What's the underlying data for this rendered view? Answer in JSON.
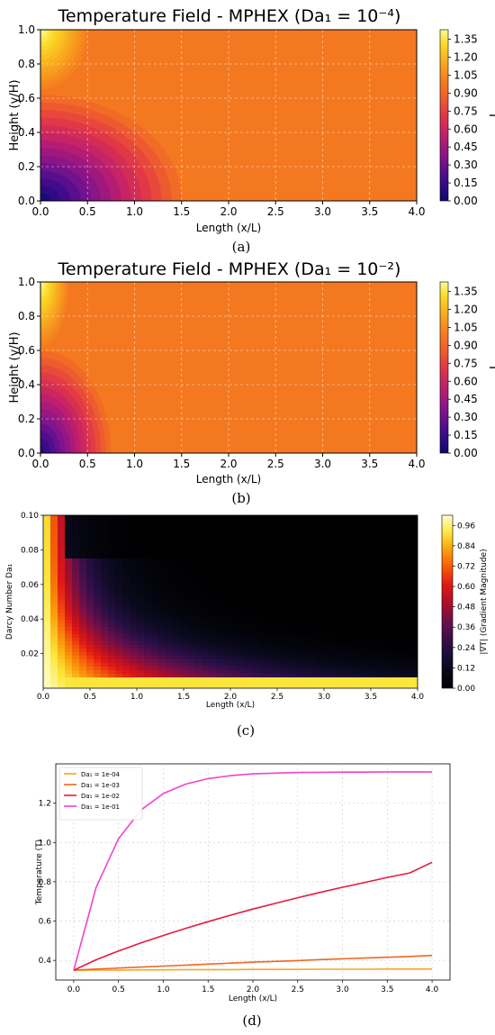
{
  "chart_data": [
    {
      "type": "heatmap",
      "panel_label": "(a)",
      "title": "Temperature Field - MPHEX (Da₁ = 10⁻⁴)",
      "xlabel": "Length (x/L)",
      "ylabel": "Height (y/H)",
      "colorbar_label": "T",
      "xlim": [
        0.0,
        4.0
      ],
      "ylim": [
        0.0,
        1.0
      ],
      "xticks": [
        "0.0",
        "0.5",
        "1.0",
        "1.5",
        "2.0",
        "2.5",
        "3.0",
        "3.5",
        "4.0"
      ],
      "yticks": [
        "0.0",
        "0.2",
        "0.4",
        "0.6",
        "0.8",
        "1.0"
      ],
      "colorbar_ticks": [
        "0.00",
        "0.15",
        "0.30",
        "0.45",
        "0.60",
        "0.75",
        "0.90",
        "1.05",
        "1.20",
        "1.35"
      ],
      "colorbar_range": [
        0.0,
        1.43
      ],
      "colormap": "plasma-like (navy-purple-red-orange-yellow)",
      "background_value": 0.98,
      "cold_zone": {
        "x_extent": 1.5,
        "y_top": 0.62,
        "min_value": 0.05
      },
      "hot_zone": {
        "x_extent": 0.5,
        "y_bottom": 0.65,
        "max_value": 1.42
      },
      "grid": true
    },
    {
      "type": "heatmap",
      "panel_label": "(b)",
      "title": "Temperature Field - MPHEX (Da₁ = 10⁻²)",
      "xlabel": "Length (x/L)",
      "ylabel": "Height (y/H)",
      "colorbar_label": "T",
      "xlim": [
        0.0,
        4.0
      ],
      "ylim": [
        0.0,
        1.0
      ],
      "xticks": [
        "0.0",
        "0.5",
        "1.0",
        "1.5",
        "2.0",
        "2.5",
        "3.0",
        "3.5",
        "4.0"
      ],
      "yticks": [
        "0.0",
        "0.2",
        "0.4",
        "0.6",
        "0.8",
        "1.0"
      ],
      "colorbar_ticks": [
        "0.00",
        "0.15",
        "0.30",
        "0.45",
        "0.60",
        "0.75",
        "0.90",
        "1.05",
        "1.20",
        "1.35"
      ],
      "colorbar_range": [
        0.0,
        1.43
      ],
      "colormap": "plasma-like (navy-purple-red-orange-yellow)",
      "background_value": 0.98,
      "cold_zone": {
        "x_extent": 0.75,
        "y_top": 0.6,
        "min_value": 0.1
      },
      "hot_zone": {
        "x_extent": 0.3,
        "y_bottom": 0.62,
        "max_value": 1.42
      },
      "grid": true
    },
    {
      "type": "heatmap",
      "panel_label": "(c)",
      "title": "",
      "xlabel": "Length (x/L)",
      "ylabel": "Darcy Number Da₁",
      "colorbar_label": "|∇T| (Gradient Magnitude)",
      "xlim": [
        0.0,
        4.0
      ],
      "ylim": [
        0.0,
        0.1
      ],
      "xticks": [
        "0.0",
        "0.5",
        "1.0",
        "1.5",
        "2.0",
        "2.5",
        "3.0",
        "3.5",
        "4.0"
      ],
      "yticks": [
        "0.02",
        "0.04",
        "0.06",
        "0.08",
        "0.10"
      ],
      "colorbar_ticks": [
        "0.00",
        "0.12",
        "0.24",
        "0.36",
        "0.48",
        "0.60",
        "0.72",
        "0.84",
        "0.96"
      ],
      "colorbar_range": [
        0.0,
        1.02
      ],
      "colormap": "hot (black-red-yellow-white)",
      "grid": false
    },
    {
      "type": "line",
      "panel_label": "(d)",
      "title": "",
      "xlabel": "Length (x/L)",
      "ylabel": "Temperature (T)",
      "xlim": [
        -0.2,
        4.2
      ],
      "ylim": [
        0.3,
        1.4
      ],
      "xticks": [
        "0.0",
        "0.5",
        "1.0",
        "1.5",
        "2.0",
        "2.5",
        "3.0",
        "3.5",
        "4.0"
      ],
      "yticks": [
        "0.4",
        "0.6",
        "0.8",
        "1.0",
        "1.2"
      ],
      "legend_position": "top-left",
      "grid": true,
      "x": [
        0.0,
        0.25,
        0.5,
        0.75,
        1.0,
        1.25,
        1.5,
        1.75,
        2.0,
        2.25,
        2.5,
        2.75,
        3.0,
        3.25,
        3.5,
        3.75,
        4.0
      ],
      "series": [
        {
          "name": "Da₁ = 1e-04",
          "color": "#f5a623",
          "values": [
            0.35,
            0.351,
            0.351,
            0.352,
            0.352,
            0.353,
            0.353,
            0.353,
            0.354,
            0.354,
            0.354,
            0.355,
            0.355,
            0.355,
            0.356,
            0.356,
            0.356
          ]
        },
        {
          "name": "Da₁ = 1e-03",
          "color": "#f26522",
          "values": [
            0.35,
            0.356,
            0.361,
            0.366,
            0.371,
            0.376,
            0.381,
            0.386,
            0.391,
            0.395,
            0.399,
            0.404,
            0.408,
            0.412,
            0.416,
            0.42,
            0.425
          ]
        },
        {
          "name": "Da₁ = 1e-02",
          "color": "#e8193c",
          "values": [
            0.35,
            0.403,
            0.448,
            0.489,
            0.527,
            0.563,
            0.597,
            0.63,
            0.661,
            0.69,
            0.719,
            0.746,
            0.772,
            0.797,
            0.822,
            0.845,
            0.899
          ]
        },
        {
          "name": "Da₁ = 1e-01",
          "color": "#ee44cc",
          "values": [
            0.35,
            0.771,
            1.019,
            1.165,
            1.249,
            1.297,
            1.325,
            1.34,
            1.349,
            1.353,
            1.356,
            1.357,
            1.358,
            1.358,
            1.359,
            1.359,
            1.359
          ]
        }
      ]
    }
  ]
}
